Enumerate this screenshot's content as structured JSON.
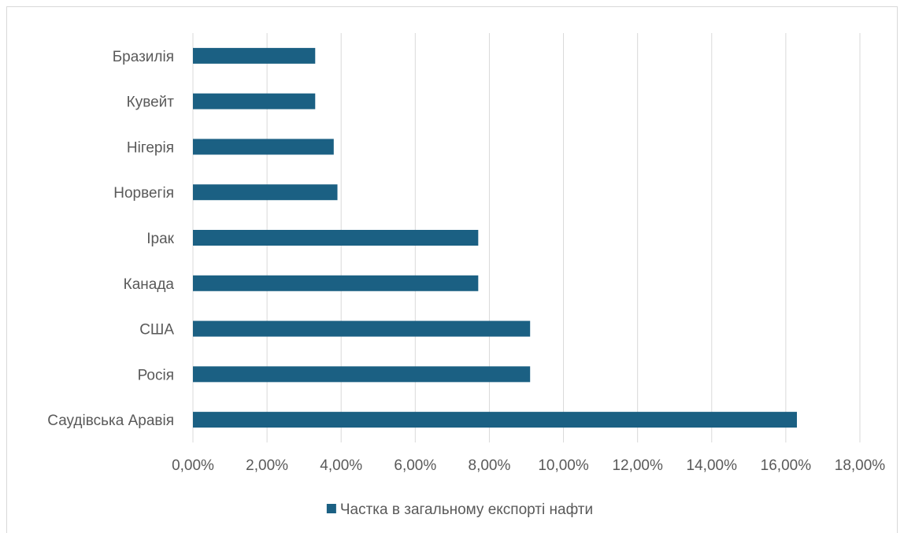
{
  "chart_data": {
    "type": "bar",
    "orientation": "horizontal",
    "categories": [
      "Бразилія",
      "Кувейт",
      "Нігерія",
      "Норвегія",
      "Ірак",
      "Канада",
      "США",
      "Росія",
      "Саудівська Аравія"
    ],
    "series": [
      {
        "name": "Частка в загальному експорті нафти",
        "values": [
          0.033,
          0.033,
          0.038,
          0.039,
          0.077,
          0.077,
          0.091,
          0.091,
          0.163
        ]
      }
    ],
    "xlim": [
      0,
      0.18
    ],
    "x_ticks": [
      0,
      0.02,
      0.04,
      0.06,
      0.08,
      0.1,
      0.12,
      0.14,
      0.16,
      0.18
    ],
    "x_tick_labels": [
      "0,00%",
      "2,00%",
      "4,00%",
      "6,00%",
      "8,00%",
      "10,00%",
      "12,00%",
      "14,00%",
      "16,00%",
      "18,00%"
    ],
    "grid": "vertical",
    "legend_position": "bottom",
    "colors": {
      "bar": "#1b6083",
      "grid": "#d9d9d9",
      "text": "#595959"
    }
  }
}
